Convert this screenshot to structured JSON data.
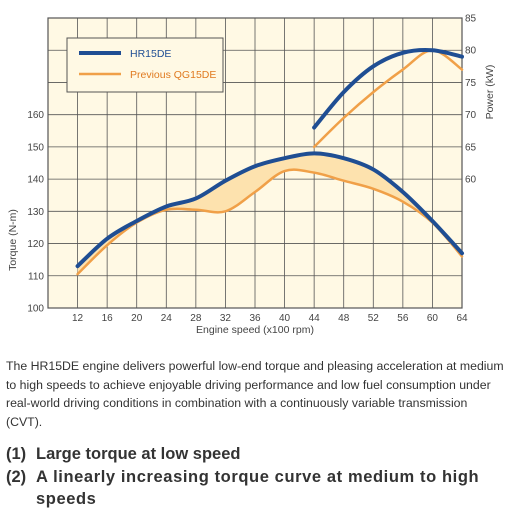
{
  "chart_data": {
    "type": "line",
    "xlabel": "Engine speed (x100 rpm)",
    "x_ticks": [
      12,
      16,
      20,
      24,
      28,
      32,
      36,
      40,
      44,
      48,
      52,
      56,
      60,
      64
    ],
    "xlim": [
      8,
      64
    ],
    "left_axis": {
      "label": "Torque (N-m)",
      "ylim": [
        100,
        190
      ],
      "ticks": [
        100,
        110,
        120,
        130,
        140,
        150,
        160
      ]
    },
    "right_axis": {
      "label": "Power (kW)",
      "ylim": [
        40,
        85
      ],
      "ticks": [
        60,
        65,
        70,
        75,
        80,
        85
      ]
    },
    "grid": true,
    "legend_position": "top-left",
    "fill_between_torque_curves": true,
    "series": [
      {
        "name": "HR15DE",
        "color": "#1f4e93",
        "torque": {
          "x": [
            12,
            16,
            20,
            24,
            28,
            32,
            36,
            40,
            44,
            48,
            52,
            56,
            60,
            64
          ],
          "y": [
            113,
            121.5,
            127,
            131.5,
            134,
            139.5,
            144,
            146.5,
            148,
            146.5,
            143,
            136,
            127,
            117
          ]
        },
        "power": {
          "x": [
            44,
            48,
            52,
            56,
            60,
            64
          ],
          "y": [
            68,
            73.5,
            77.5,
            79.6,
            80,
            79
          ]
        }
      },
      {
        "name": "Previous QG15DE",
        "color": "#f0a048",
        "torque": {
          "x": [
            12,
            16,
            20,
            24,
            28,
            32,
            36,
            40,
            44,
            48,
            52,
            56,
            60,
            64
          ],
          "y": [
            110.5,
            119.5,
            126.5,
            130.5,
            130.5,
            130,
            136,
            142.5,
            142,
            139.5,
            137,
            133,
            126.5,
            116
          ]
        },
        "power": {
          "x": [
            44,
            48,
            52,
            56,
            60,
            64
          ],
          "y": [
            65,
            69.5,
            73.5,
            77,
            80,
            77
          ]
        }
      }
    ]
  },
  "description": "The HR15DE engine delivers powerful low-end torque and pleasing acceleration at medium to high speeds to achieve enjoyable driving performance and low fuel consumption under real-world driving conditions in combination with a continuously variable transmission (CVT).",
  "points": [
    {
      "num": "(1)",
      "text": "Large torque at low speed"
    },
    {
      "num": "(2)",
      "text": "A linearly increasing torque curve at medium to high speeds"
    }
  ]
}
